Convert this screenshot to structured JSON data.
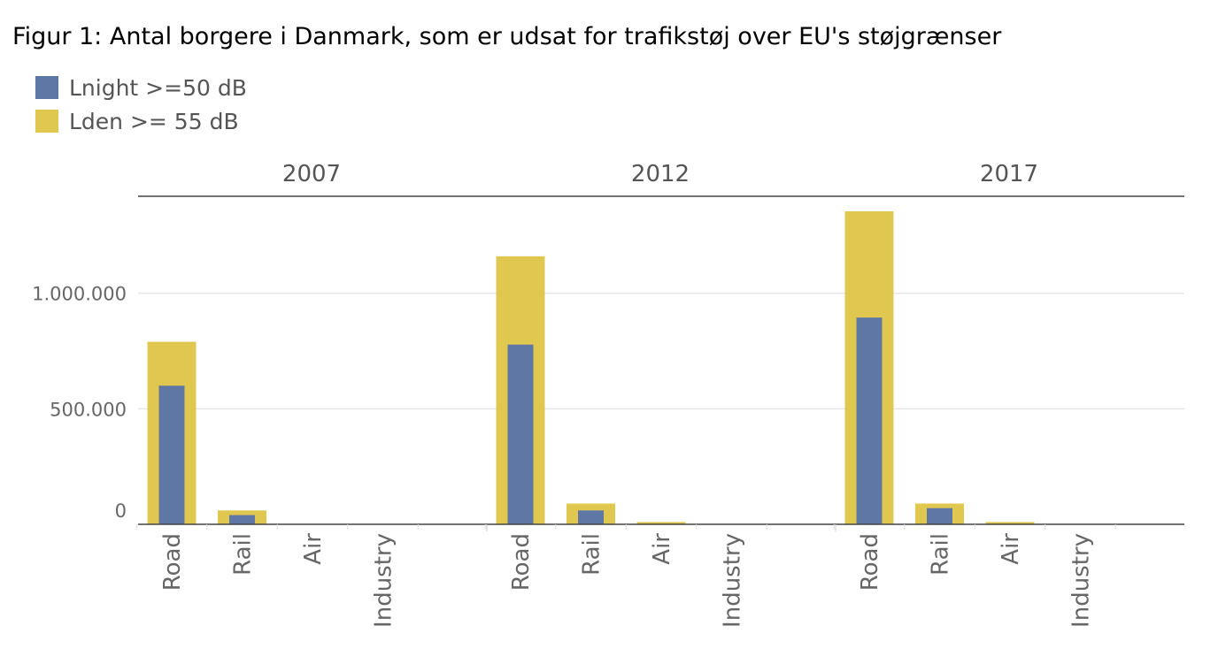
{
  "title": "Figur 1: Antal borgere i Danmark, som er udsat for trafikstøj over EU's støjgrænser",
  "chart_data": {
    "type": "bar",
    "title": "Figur 1: Antal borgere i Danmark, som er udsat for trafikstøj over EU's støjgrænser",
    "groups": [
      "2007",
      "2012",
      "2017"
    ],
    "categories": [
      "Road",
      "Rail",
      "Air",
      "Industry"
    ],
    "series": [
      {
        "name": "Lden >= 55 dB",
        "color": "#e0c850",
        "values": {
          "2007": [
            790000,
            60000,
            0,
            0
          ],
          "2012": [
            1160000,
            90000,
            10000,
            0
          ],
          "2017": [
            1355000,
            90000,
            10000,
            0
          ]
        }
      },
      {
        "name": "Lnight >=50 dB",
        "color": "#5f77a5",
        "values": {
          "2007": [
            600000,
            40000,
            0,
            0
          ],
          "2012": [
            778000,
            60000,
            0,
            0
          ],
          "2017": [
            895000,
            70000,
            0,
            0
          ]
        }
      }
    ],
    "yticks": [
      {
        "value": 0,
        "label": "0"
      },
      {
        "value": 500000,
        "label": "500.000"
      },
      {
        "value": 1000000,
        "label": "1.000.000"
      }
    ],
    "ylim": [
      0,
      1420000
    ],
    "grid": true,
    "legend_position": "top-left"
  },
  "legend": [
    {
      "label": "Lnight >=50 dB",
      "color": "#5f77a5"
    },
    {
      "label": "Lden >= 55 dB",
      "color": "#e0c850"
    }
  ]
}
